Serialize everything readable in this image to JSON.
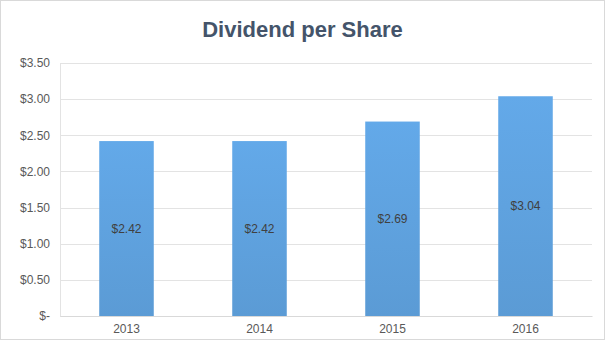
{
  "chart_data": {
    "type": "bar",
    "title": "Dividend per Share",
    "categories": [
      "2013",
      "2014",
      "2015",
      "2016"
    ],
    "values": [
      2.42,
      2.42,
      2.69,
      3.04
    ],
    "value_labels": [
      "$2.42",
      "$2.42",
      "$2.69",
      "$3.04"
    ],
    "color": "#5b9bd5",
    "ylim": [
      0,
      3.5
    ],
    "yticks": [
      {
        "value": 0,
        "label": "$-"
      },
      {
        "value": 0.5,
        "label": "$0.50"
      },
      {
        "value": 1,
        "label": "$1.00"
      },
      {
        "value": 1.5,
        "label": "$1.50"
      },
      {
        "value": 2,
        "label": "$2.00"
      },
      {
        "value": 2.5,
        "label": "$2.50"
      },
      {
        "value": 3,
        "label": "$3.00"
      },
      {
        "value": 3.5,
        "label": "$3.50"
      }
    ],
    "grid": true,
    "data_labels": true
  }
}
